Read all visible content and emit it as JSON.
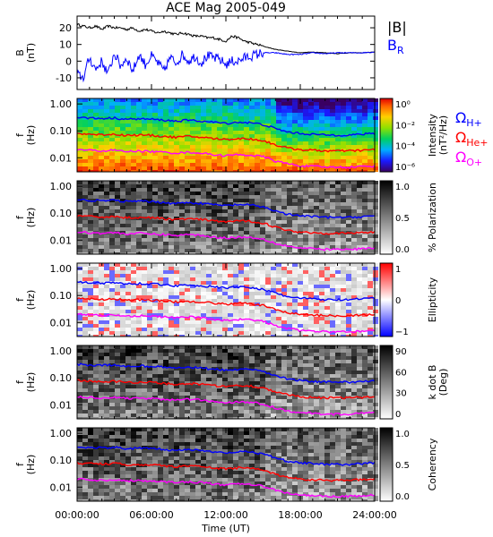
{
  "title": "ACE Mag 2005-049",
  "xaxis": {
    "label": "Time (UT)",
    "ticks": [
      "00:00:00",
      "06:00:00",
      "12:00:00",
      "18:00:00",
      "24:00:00"
    ],
    "range_hours": [
      0,
      24
    ]
  },
  "colors": {
    "blue": "#0000ff",
    "red": "#ff0000",
    "magenta": "#ff00ff",
    "black": "#000000"
  },
  "chart_data": [
    {
      "type": "line",
      "id": "field",
      "title": "ACE Mag 2005-049",
      "ylabel": [
        "B",
        "(nT)"
      ],
      "yticks": [
        "20",
        "10",
        "0",
        "-10"
      ],
      "ylim": [
        -17,
        27
      ],
      "series": [
        {
          "name": "|B|",
          "color": "#000000",
          "x": [
            0,
            0.5,
            1,
            1.5,
            2,
            2.5,
            3,
            3.5,
            4,
            4.5,
            5,
            5.5,
            6,
            6.5,
            7,
            7.5,
            8,
            8.5,
            9,
            9.5,
            10,
            10.5,
            11,
            11.5,
            12,
            12.5,
            13,
            13.5,
            14,
            14.5,
            15,
            15.5,
            16,
            17,
            18,
            19,
            20,
            21,
            22,
            23,
            24
          ],
          "y": [
            22,
            21,
            20,
            21,
            19,
            21,
            20,
            20,
            19,
            20,
            18,
            19,
            18,
            17,
            18,
            17,
            16,
            17,
            16,
            15,
            15,
            14,
            14,
            13,
            12,
            15,
            14,
            12,
            11,
            10,
            9,
            8,
            7,
            6,
            5,
            5.5,
            5,
            4.5,
            5,
            5,
            5.5
          ]
        },
        {
          "name": "B",
          "subscript": "R",
          "color": "#0000ff",
          "x": [
            0,
            0.5,
            1,
            1.5,
            2,
            2.5,
            3,
            3.5,
            4,
            4.5,
            5,
            5.5,
            6,
            6.5,
            7,
            7.5,
            8,
            8.5,
            9,
            9.5,
            10,
            10.5,
            11,
            11.5,
            12,
            12.5,
            13,
            13.5,
            14,
            14.5,
            15,
            15.5,
            16,
            17,
            18,
            19,
            20,
            21,
            22,
            23,
            24
          ],
          "y": [
            -8,
            -10,
            2,
            -5,
            0,
            -8,
            5,
            -3,
            2,
            -6,
            4,
            -2,
            3,
            -1,
            -6,
            2,
            -1,
            4,
            0,
            3,
            -1,
            3,
            2,
            1,
            -2,
            0,
            0,
            2,
            3,
            4,
            5,
            5,
            5,
            4,
            4,
            5,
            4.5,
            5,
            5,
            5,
            5.5
          ]
        }
      ]
    },
    {
      "type": "heatmap",
      "id": "intensity",
      "ylabel": [
        "f",
        "(Hz)"
      ],
      "yticks": [
        "1.00",
        "0.10",
        "0.01"
      ],
      "colorbar": {
        "label": [
          "Intensity",
          "(nT²/Hz)"
        ],
        "scale": "log",
        "ticks": [
          "10⁰",
          "10⁻²",
          "10⁻⁴",
          "10⁻⁶"
        ],
        "palette": "rainbow"
      },
      "overlay_legend": [
        {
          "symbol": "Ω",
          "subscript": "H+",
          "color": "#0000ff"
        },
        {
          "symbol": "Ω",
          "subscript": "He+",
          "color": "#ff0000"
        },
        {
          "symbol": "Ω",
          "subscript": "O+",
          "color": "#ff00ff"
        }
      ]
    },
    {
      "type": "heatmap",
      "id": "polarization",
      "ylabel": [
        "f",
        "(Hz)"
      ],
      "yticks": [
        "1.00",
        "0.10",
        "0.01"
      ],
      "colorbar": {
        "label": [
          "% Polarization"
        ],
        "ticks": [
          "1.0",
          "0.5",
          "0.0"
        ],
        "palette": "gray"
      }
    },
    {
      "type": "heatmap",
      "id": "ellipticity",
      "ylabel": [
        "f",
        "(Hz)"
      ],
      "yticks": [
        "1.00",
        "0.10",
        "0.01"
      ],
      "colorbar": {
        "label": [
          "Ellipticity"
        ],
        "ticks": [
          "1",
          "0",
          "−1"
        ],
        "palette": "bwr"
      }
    },
    {
      "type": "heatmap",
      "id": "kdotb",
      "ylabel": [
        "f",
        "(Hz)"
      ],
      "yticks": [
        "1.00",
        "0.10",
        "0.01"
      ],
      "colorbar": {
        "label": [
          "k dot B",
          "(Deg)"
        ],
        "ticks": [
          "90",
          "60",
          "30",
          "0"
        ],
        "palette": "gray"
      }
    },
    {
      "type": "heatmap",
      "id": "coherency",
      "ylabel": [
        "f",
        "(Hz)"
      ],
      "yticks": [
        "1.00",
        "0.10",
        "0.01"
      ],
      "colorbar": {
        "label": [
          "Coherency"
        ],
        "ticks": [
          "1.0",
          "0.5",
          "0.0"
        ],
        "palette": "gray"
      }
    }
  ],
  "gyrofrequency_curves_hz": {
    "x_hours": [
      0,
      1,
      2,
      3,
      4,
      5,
      6,
      7,
      8,
      9,
      10,
      11,
      12,
      13,
      14,
      15,
      16,
      17,
      18,
      19,
      20,
      21,
      22,
      23,
      24
    ],
    "H+": [
      0.32,
      0.3,
      0.29,
      0.3,
      0.27,
      0.28,
      0.27,
      0.25,
      0.23,
      0.25,
      0.23,
      0.21,
      0.19,
      0.21,
      0.2,
      0.17,
      0.12,
      0.09,
      0.08,
      0.075,
      0.07,
      0.07,
      0.07,
      0.075,
      0.08
    ],
    "He+": [
      0.08,
      0.075,
      0.072,
      0.075,
      0.068,
      0.07,
      0.068,
      0.062,
      0.058,
      0.062,
      0.058,
      0.052,
      0.048,
      0.052,
      0.05,
      0.043,
      0.03,
      0.023,
      0.02,
      0.019,
      0.018,
      0.018,
      0.018,
      0.019,
      0.02
    ],
    "O+": [
      0.02,
      0.019,
      0.018,
      0.019,
      0.017,
      0.018,
      0.017,
      0.016,
      0.015,
      0.016,
      0.015,
      0.013,
      0.012,
      0.013,
      0.0125,
      0.011,
      0.0075,
      0.006,
      0.005,
      0.0048,
      0.0045,
      0.0045,
      0.0045,
      0.0048,
      0.005
    ]
  }
}
